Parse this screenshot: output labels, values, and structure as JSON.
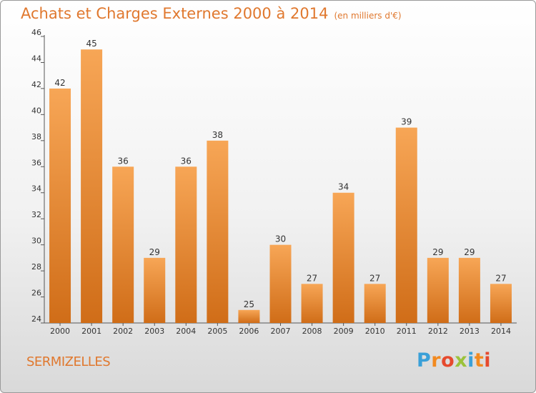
{
  "header": {
    "title": "Achats et Charges Externes 2000 à 2014",
    "subtitle": "(en milliers d'€)"
  },
  "footer": {
    "commune": "SERMIZELLES",
    "logo_letters": [
      "P",
      "r",
      "o",
      "x",
      "i",
      "t",
      "i"
    ],
    "logo_colors": [
      "#3aa0d8",
      "#f28a20",
      "#e64a2e",
      "#9bc23b",
      "#3aa0d8",
      "#f28a20",
      "#e64a2e"
    ]
  },
  "chart_data": {
    "type": "bar",
    "title": "Achats et Charges Externes 2000 à 2014",
    "categories": [
      "2000",
      "2001",
      "2002",
      "2003",
      "2004",
      "2005",
      "2006",
      "2007",
      "2008",
      "2009",
      "2010",
      "2011",
      "2012",
      "2013",
      "2014"
    ],
    "values": [
      42,
      45,
      36,
      29,
      36,
      38,
      25,
      30,
      27,
      34,
      27,
      39,
      29,
      29,
      27
    ],
    "ylim": [
      24,
      46
    ],
    "yticks": [
      24,
      26,
      28,
      30,
      32,
      34,
      36,
      38,
      40,
      42,
      44,
      46
    ],
    "xlabel": "",
    "ylabel": "",
    "grid": false,
    "bar_color_top": "#f7a656",
    "bar_color_bottom": "#d06d18",
    "accent_color": "#e0782e"
  }
}
